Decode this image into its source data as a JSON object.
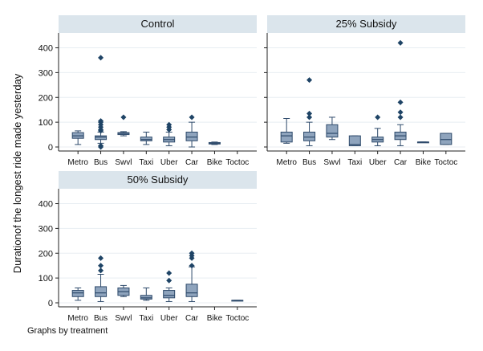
{
  "chart_data": {
    "type": "box",
    "ylabel": "Durationof the longest ride made yesterday",
    "note": "Graphs by treatment",
    "ylim": [
      0,
      460
    ],
    "yticks": [
      0,
      100,
      200,
      300,
      400
    ],
    "categories": [
      "Metro",
      "Bus",
      "Swvl",
      "Taxi",
      "Uber",
      "Car",
      "Bike",
      "Toctoc"
    ],
    "colors": {
      "box_fill": "#8fa4bd",
      "box_stroke": "#2e4a6b",
      "outlier": "#1f4466",
      "strip": "#dbe5ec",
      "grid": "#e8eef2"
    },
    "panels": [
      {
        "title": "Control",
        "boxes": [
          {
            "category": "Metro",
            "lw": 10,
            "q1": 35,
            "median": 45,
            "q3": 58,
            "uw": 65,
            "outliers": []
          },
          {
            "category": "Bus",
            "lw": 15,
            "q1": 30,
            "median": 40,
            "q3": 45,
            "uw": 60,
            "outliers": [
              0,
              5,
              65,
              70,
              80,
              90,
              100,
              105,
              360
            ]
          },
          {
            "category": "Swvl",
            "lw": 45,
            "q1": 50,
            "median": 55,
            "q3": 58,
            "uw": 62,
            "outliers": [
              120
            ]
          },
          {
            "category": "Taxi",
            "lw": 10,
            "q1": 25,
            "median": 30,
            "q3": 40,
            "uw": 60,
            "outliers": []
          },
          {
            "category": "Uber",
            "lw": 5,
            "q1": 20,
            "median": 30,
            "q3": 40,
            "uw": 60,
            "outliers": [
              70,
              80,
              90
            ]
          },
          {
            "category": "Car",
            "lw": 0,
            "q1": 25,
            "median": 40,
            "q3": 60,
            "uw": 100,
            "outliers": [
              120
            ]
          },
          {
            "category": "Bike",
            "lw": 10,
            "q1": 12,
            "median": 15,
            "q3": 18,
            "uw": 20,
            "outliers": []
          },
          {
            "category": "Toctoc",
            "lw": null,
            "q1": null,
            "median": null,
            "q3": null,
            "uw": null,
            "outliers": []
          }
        ]
      },
      {
        "title": "25% Subsidy",
        "boxes": [
          {
            "category": "Metro",
            "lw": 15,
            "q1": 20,
            "median": 45,
            "q3": 60,
            "uw": 115,
            "outliers": []
          },
          {
            "category": "Bus",
            "lw": 5,
            "q1": 25,
            "median": 40,
            "q3": 60,
            "uw": 100,
            "outliers": [
              120,
              135,
              270
            ]
          },
          {
            "category": "Swvl",
            "lw": 30,
            "q1": 40,
            "median": 55,
            "q3": 90,
            "uw": 120,
            "outliers": []
          },
          {
            "category": "Taxi",
            "lw": 5,
            "q1": 5,
            "median": 10,
            "q3": 45,
            "uw": 45,
            "outliers": []
          },
          {
            "category": "Uber",
            "lw": 5,
            "q1": 20,
            "median": 30,
            "q3": 40,
            "uw": 75,
            "outliers": [
              120
            ]
          },
          {
            "category": "Car",
            "lw": 5,
            "q1": 30,
            "median": 45,
            "q3": 60,
            "uw": 90,
            "outliers": [
              120,
              140,
              180,
              420
            ]
          },
          {
            "category": "Bike",
            "lw": 20,
            "q1": 20,
            "median": 20,
            "q3": 20,
            "uw": 20,
            "outliers": []
          },
          {
            "category": "Toctoc",
            "lw": 10,
            "q1": 10,
            "median": 30,
            "q3": 55,
            "uw": 55,
            "outliers": []
          }
        ]
      },
      {
        "title": "50% Subsidy",
        "boxes": [
          {
            "category": "Metro",
            "lw": 10,
            "q1": 25,
            "median": 40,
            "q3": 50,
            "uw": 60,
            "outliers": []
          },
          {
            "category": "Bus",
            "lw": 5,
            "q1": 25,
            "median": 40,
            "q3": 65,
            "uw": 115,
            "outliers": [
              130,
              150,
              180
            ]
          },
          {
            "category": "Swvl",
            "lw": 25,
            "q1": 30,
            "median": 45,
            "q3": 60,
            "uw": 70,
            "outliers": []
          },
          {
            "category": "Taxi",
            "lw": 10,
            "q1": 15,
            "median": 20,
            "q3": 30,
            "uw": 60,
            "outliers": []
          },
          {
            "category": "Uber",
            "lw": 5,
            "q1": 20,
            "median": 30,
            "q3": 50,
            "uw": 60,
            "outliers": [
              90,
              120
            ]
          },
          {
            "category": "Car",
            "lw": 5,
            "q1": 25,
            "median": 40,
            "q3": 75,
            "uw": 145,
            "outliers": [
              150,
              180,
              190,
              200
            ]
          },
          {
            "category": "Bike",
            "lw": null,
            "q1": null,
            "median": null,
            "q3": null,
            "uw": null,
            "outliers": []
          },
          {
            "category": "Toctoc",
            "lw": 10,
            "q1": 10,
            "median": 10,
            "q3": 10,
            "uw": 10,
            "outliers": []
          }
        ]
      }
    ]
  }
}
